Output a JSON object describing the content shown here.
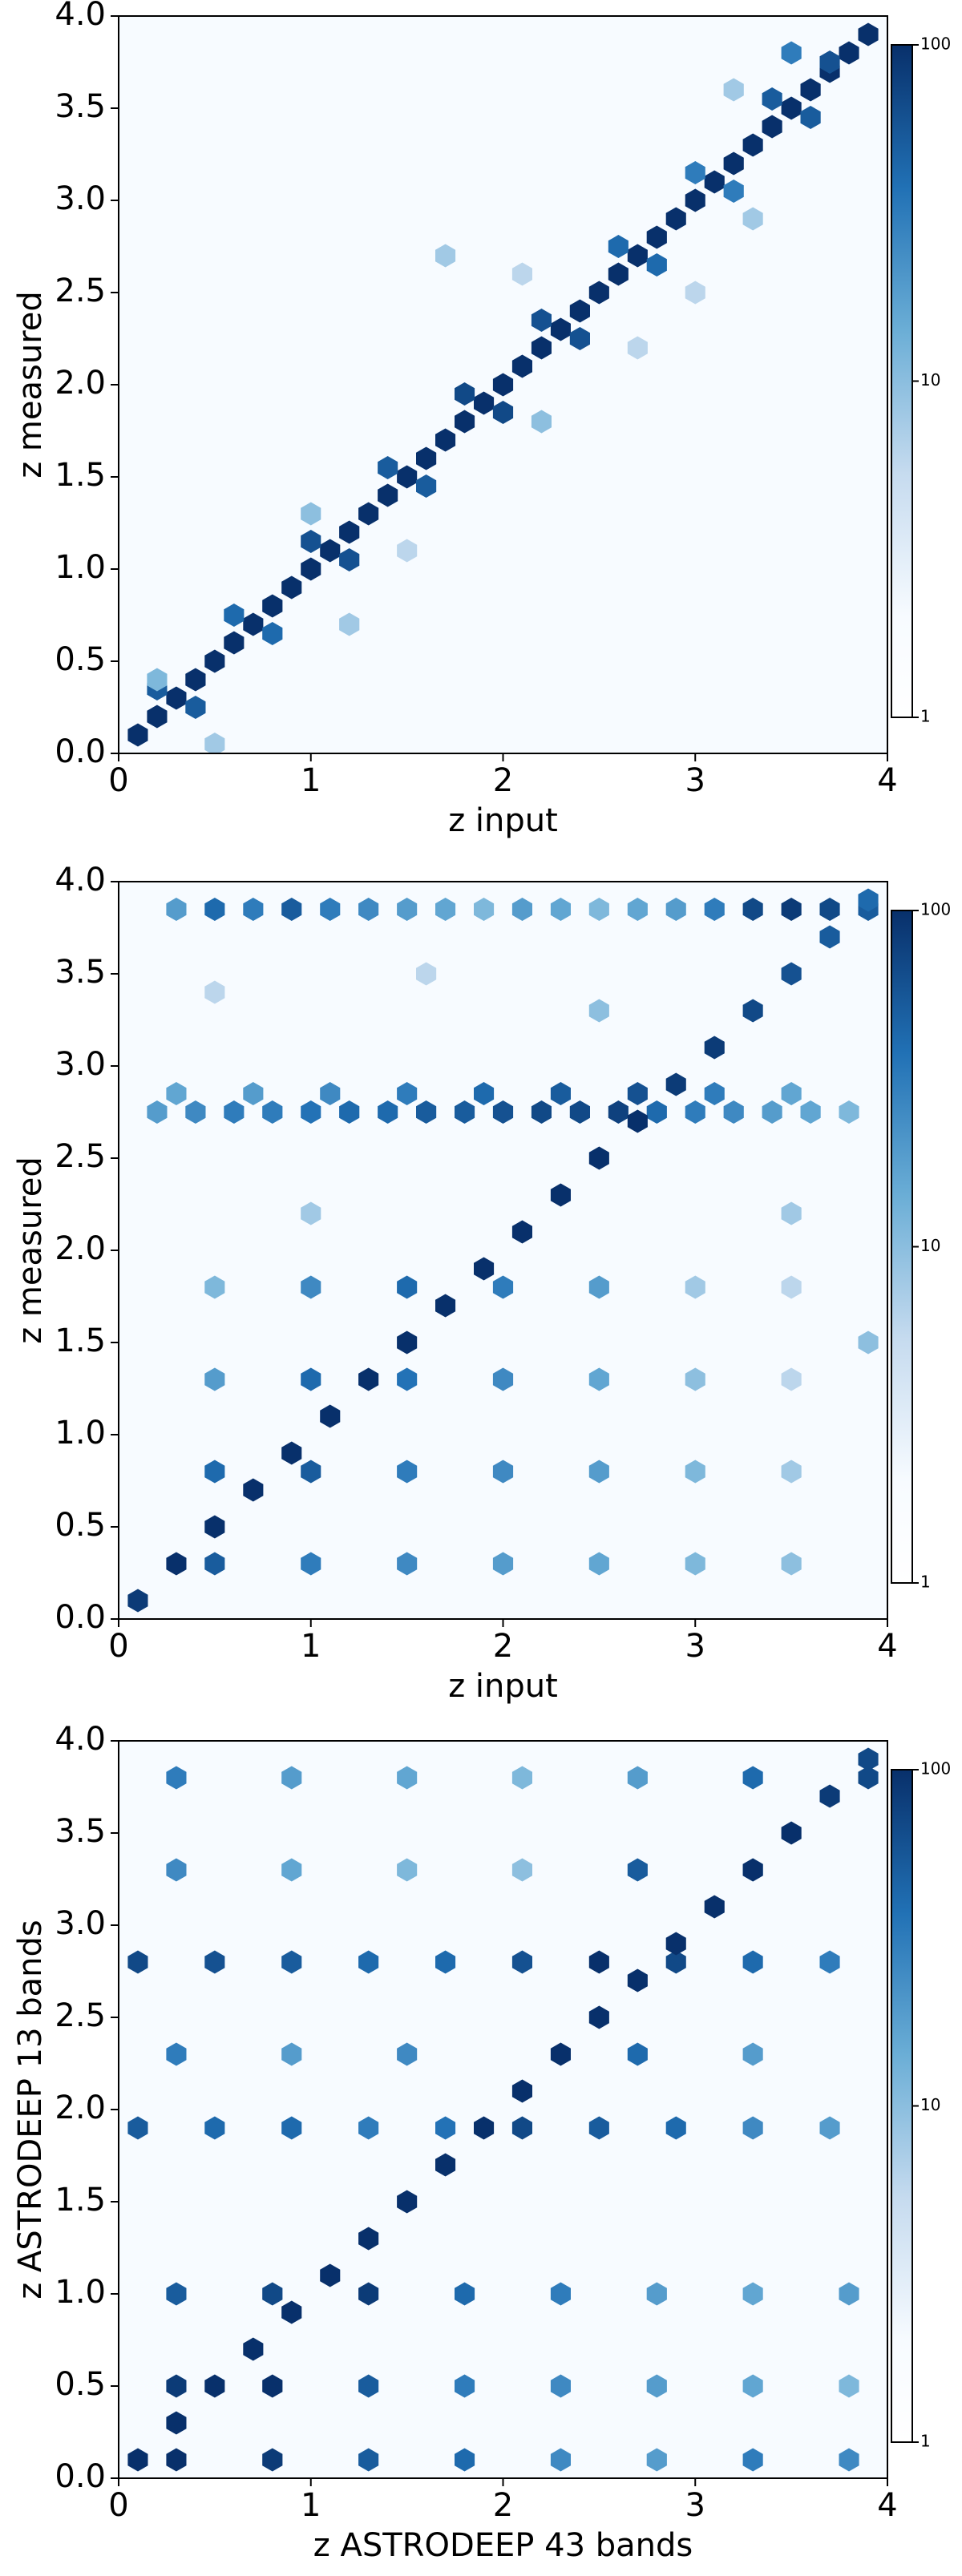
{
  "chart_data": [
    {
      "type": "hexbin",
      "xlabel": "z input",
      "ylabel": "z measured",
      "xlim": [
        0,
        4
      ],
      "ylim": [
        0,
        4
      ],
      "xticks": [
        0,
        1,
        2,
        3,
        4
      ],
      "yticks": [
        {
          "value": 0,
          "label": "0.0"
        },
        {
          "value": 0.5,
          "label": "0.5"
        },
        {
          "value": 1,
          "label": "1.0"
        },
        {
          "value": 1.5,
          "label": "1.5"
        },
        {
          "value": 2,
          "label": "2.0"
        },
        {
          "value": 2.5,
          "label": "2.5"
        },
        {
          "value": 3,
          "label": "3.0"
        },
        {
          "value": 3.5,
          "label": "3.5"
        },
        {
          "value": 4,
          "label": "4.0"
        }
      ],
      "colorbar": {
        "lim": [
          1,
          100
        ],
        "ticks": [
          1,
          10,
          100
        ],
        "log": true
      },
      "colors": [
        "#f7fbff",
        "#c6dbef",
        "#6baed6",
        "#2171b5",
        "#08306b"
      ],
      "x": [
        0.1,
        0.2,
        0.3,
        0.4,
        0.5,
        0.6,
        0.7,
        0.8,
        0.9,
        1.0,
        1.1,
        1.2,
        1.3,
        1.4,
        1.5,
        1.6,
        1.7,
        1.8,
        1.9,
        2.0,
        2.1,
        2.2,
        2.3,
        2.4,
        2.5,
        2.6,
        2.7,
        2.8,
        2.9,
        3.0,
        3.1,
        3.2,
        3.3,
        3.4,
        3.5,
        3.6,
        3.7,
        3.8,
        3.9,
        0.2,
        0.6,
        1.0,
        1.4,
        1.8,
        2.2,
        2.6,
        3.0,
        3.4,
        0.4,
        0.8,
        1.2,
        1.6,
        2.0,
        2.4,
        2.8,
        3.2,
        3.6,
        0.2,
        0.5,
        1.0,
        1.2,
        1.5,
        1.7,
        2.1,
        2.2,
        2.7,
        3.0,
        3.2,
        3.5,
        3.7,
        3.3
      ],
      "y": [
        0.1,
        0.2,
        0.3,
        0.4,
        0.5,
        0.6,
        0.7,
        0.8,
        0.9,
        1.0,
        1.1,
        1.2,
        1.3,
        1.4,
        1.5,
        1.6,
        1.7,
        1.8,
        1.9,
        2.0,
        2.1,
        2.2,
        2.3,
        2.4,
        2.5,
        2.6,
        2.7,
        2.8,
        2.9,
        3.0,
        3.1,
        3.2,
        3.3,
        3.4,
        3.5,
        3.6,
        3.7,
        3.8,
        3.9,
        0.35,
        0.75,
        1.15,
        1.55,
        1.95,
        2.35,
        2.75,
        3.15,
        3.55,
        0.25,
        0.65,
        1.05,
        1.45,
        1.85,
        2.25,
        2.65,
        3.05,
        3.45,
        0.4,
        0.05,
        1.3,
        0.7,
        1.1,
        2.7,
        2.6,
        1.8,
        2.2,
        2.5,
        3.6,
        3.8,
        3.75,
        2.9
      ],
      "counts": [
        100,
        100,
        100,
        100,
        100,
        100,
        100,
        100,
        100,
        100,
        100,
        100,
        100,
        100,
        100,
        100,
        100,
        100,
        100,
        100,
        100,
        100,
        100,
        100,
        100,
        100,
        100,
        100,
        100,
        100,
        100,
        100,
        100,
        100,
        100,
        100,
        100,
        100,
        100,
        40,
        30,
        50,
        40,
        60,
        50,
        30,
        20,
        40,
        40,
        30,
        50,
        40,
        60,
        50,
        30,
        20,
        40,
        5,
        3,
        4,
        3,
        2,
        3,
        2,
        4,
        2,
        2,
        3,
        20,
        50,
        3
      ]
    },
    {
      "type": "hexbin",
      "xlabel": "z input",
      "ylabel": "z measured",
      "xlim": [
        0,
        4
      ],
      "ylim": [
        0,
        4
      ],
      "xticks": [
        0,
        1,
        2,
        3,
        4
      ],
      "yticks": [
        {
          "value": 0,
          "label": "0.0"
        },
        {
          "value": 0.5,
          "label": "0.5"
        },
        {
          "value": 1,
          "label": "1.0"
        },
        {
          "value": 1.5,
          "label": "1.5"
        },
        {
          "value": 2,
          "label": "2.0"
        },
        {
          "value": 2.5,
          "label": "2.5"
        },
        {
          "value": 3,
          "label": "3.0"
        },
        {
          "value": 3.5,
          "label": "3.5"
        },
        {
          "value": 4,
          "label": "4.0"
        }
      ],
      "colorbar": {
        "lim": [
          1,
          100
        ],
        "ticks": [
          1,
          10,
          100
        ],
        "log": true
      },
      "colors": [
        "#f7fbff",
        "#c6dbef",
        "#6baed6",
        "#2171b5",
        "#08306b"
      ],
      "x": [
        0.5,
        1.0,
        1.5,
        2.0,
        2.5,
        3.0,
        3.5,
        0.5,
        1.0,
        1.5,
        2.0,
        2.5,
        3.0,
        3.5,
        0.5,
        1.0,
        1.5,
        2.0,
        2.5,
        3.0,
        3.5,
        0.5,
        1.0,
        1.5,
        2.0,
        2.5,
        3.0,
        3.5,
        1.0,
        2.5,
        3.5,
        3.9,
        0.5,
        1.6,
        0.2,
        0.4,
        0.6,
        0.8,
        1.0,
        1.2,
        1.4,
        1.6,
        1.8,
        2.0,
        2.2,
        2.4,
        2.6,
        2.8,
        3.0,
        3.2,
        3.4,
        3.6,
        3.8,
        0.3,
        0.7,
        1.1,
        1.5,
        1.9,
        2.3,
        2.7,
        3.1,
        3.5,
        0.3,
        0.5,
        0.7,
        0.9,
        1.1,
        1.3,
        1.5,
        1.7,
        1.9,
        2.1,
        2.3,
        2.5,
        2.7,
        2.9,
        3.1,
        3.3,
        3.5,
        3.7,
        3.9,
        0.1,
        0.3,
        0.5,
        0.7,
        0.9,
        1.1,
        1.3,
        1.5,
        1.7,
        1.9,
        2.1,
        2.3,
        2.5,
        2.7,
        2.9,
        3.1,
        3.3,
        3.5,
        3.7,
        3.9
      ],
      "y": [
        0.3,
        0.3,
        0.3,
        0.3,
        0.3,
        0.3,
        0.3,
        0.8,
        0.8,
        0.8,
        0.8,
        0.8,
        0.8,
        0.8,
        1.3,
        1.3,
        1.3,
        1.3,
        1.3,
        1.3,
        1.3,
        1.8,
        1.8,
        1.8,
        1.8,
        1.8,
        1.8,
        1.8,
        2.2,
        3.3,
        2.2,
        1.5,
        3.4,
        3.5,
        2.75,
        2.75,
        2.75,
        2.75,
        2.75,
        2.75,
        2.75,
        2.75,
        2.75,
        2.75,
        2.75,
        2.75,
        2.75,
        2.75,
        2.75,
        2.75,
        2.75,
        2.75,
        2.75,
        2.85,
        2.85,
        2.85,
        2.85,
        2.85,
        2.85,
        2.85,
        2.85,
        2.85,
        3.85,
        3.85,
        3.85,
        3.85,
        3.85,
        3.85,
        3.85,
        3.85,
        3.85,
        3.85,
        3.85,
        3.85,
        3.85,
        3.85,
        3.85,
        3.85,
        3.85,
        3.85,
        3.85,
        0.1,
        0.3,
        0.5,
        0.7,
        0.9,
        1.1,
        1.3,
        1.5,
        1.7,
        1.9,
        2.1,
        2.3,
        2.5,
        2.7,
        2.9,
        3.1,
        3.3,
        3.5,
        3.7,
        3.9
      ],
      "counts": [
        40,
        20,
        15,
        10,
        8,
        5,
        4,
        30,
        40,
        20,
        15,
        10,
        5,
        3,
        10,
        30,
        25,
        15,
        8,
        4,
        2,
        5,
        15,
        30,
        20,
        10,
        3,
        2,
        3,
        4,
        3,
        4,
        2,
        2,
        10,
        15,
        20,
        20,
        25,
        30,
        30,
        40,
        40,
        50,
        60,
        60,
        70,
        30,
        20,
        15,
        10,
        8,
        5,
        8,
        10,
        15,
        20,
        30,
        40,
        50,
        20,
        8,
        10,
        30,
        20,
        40,
        20,
        15,
        10,
        8,
        5,
        10,
        8,
        5,
        8,
        10,
        20,
        60,
        80,
        60,
        40,
        80,
        100,
        100,
        100,
        100,
        100,
        100,
        100,
        100,
        100,
        100,
        100,
        100,
        100,
        80,
        80,
        60,
        50,
        40,
        30
      ]
    },
    {
      "type": "hexbin",
      "xlabel": "z ASTRODEEP 43 bands",
      "ylabel": "z ASTRODEEP 13 bands",
      "xlim": [
        0,
        4
      ],
      "ylim": [
        0,
        4
      ],
      "xticks": [
        0,
        1,
        2,
        3,
        4
      ],
      "yticks": [
        {
          "value": 0,
          "label": "0.0"
        },
        {
          "value": 0.5,
          "label": "0.5"
        },
        {
          "value": 1,
          "label": "1.0"
        },
        {
          "value": 1.5,
          "label": "1.5"
        },
        {
          "value": 2,
          "label": "2.0"
        },
        {
          "value": 2.5,
          "label": "2.5"
        },
        {
          "value": 3,
          "label": "3.0"
        },
        {
          "value": 3.5,
          "label": "3.5"
        },
        {
          "value": 4,
          "label": "4.0"
        }
      ],
      "colorbar": {
        "lim": [
          1,
          100
        ],
        "ticks": [
          1,
          10,
          100
        ],
        "log": true
      },
      "colors": [
        "#f7fbff",
        "#c6dbef",
        "#6baed6",
        "#2171b5",
        "#08306b"
      ],
      "x": [
        0.3,
        0.8,
        1.3,
        1.8,
        2.3,
        2.8,
        3.3,
        3.8,
        0.3,
        0.8,
        1.3,
        1.8,
        2.3,
        2.8,
        3.3,
        3.8,
        0.3,
        0.8,
        1.3,
        1.8,
        2.3,
        2.8,
        3.3,
        3.8,
        0.3,
        0.9,
        1.5,
        2.1,
        2.7,
        3.3,
        3.9,
        0.3,
        0.9,
        1.5,
        2.1,
        2.7,
        3.3,
        0.3,
        0.9,
        1.5,
        2.7,
        3.3,
        0.1,
        0.5,
        0.9,
        1.3,
        1.7,
        2.1,
        2.5,
        2.9,
        3.3,
        3.7,
        0.1,
        0.5,
        0.9,
        1.3,
        1.7,
        2.1,
        2.5,
        2.9,
        3.3,
        3.7,
        0.1,
        0.3,
        0.5,
        0.7,
        0.9,
        1.1,
        1.3,
        1.5,
        1.7,
        1.9,
        2.1,
        2.3,
        2.5,
        2.7,
        2.9,
        3.1,
        3.3,
        3.5,
        3.7,
        3.9
      ],
      "y": [
        0.1,
        0.1,
        0.1,
        0.1,
        0.1,
        0.1,
        0.1,
        0.1,
        0.5,
        0.5,
        0.5,
        0.5,
        0.5,
        0.5,
        0.5,
        0.5,
        1.0,
        1.0,
        1.0,
        1.0,
        1.0,
        1.0,
        1.0,
        1.0,
        3.8,
        3.8,
        3.8,
        3.8,
        3.8,
        3.8,
        3.8,
        3.3,
        3.3,
        3.3,
        3.3,
        3.3,
        3.3,
        2.3,
        2.3,
        2.3,
        2.3,
        2.3,
        2.8,
        2.8,
        2.8,
        2.8,
        2.8,
        2.8,
        2.8,
        2.8,
        2.8,
        2.8,
        1.9,
        1.9,
        1.9,
        1.9,
        1.9,
        1.9,
        1.9,
        1.9,
        1.9,
        1.9,
        0.1,
        0.3,
        0.5,
        0.7,
        0.9,
        1.1,
        1.3,
        1.5,
        1.7,
        1.9,
        2.1,
        2.3,
        2.5,
        2.7,
        2.9,
        3.1,
        3.3,
        3.5,
        3.7,
        3.9
      ],
      "counts": [
        100,
        80,
        40,
        30,
        15,
        10,
        20,
        15,
        80,
        100,
        40,
        20,
        15,
        10,
        8,
        5,
        40,
        60,
        80,
        30,
        20,
        10,
        8,
        10,
        20,
        10,
        8,
        5,
        10,
        30,
        60,
        15,
        8,
        5,
        4,
        40,
        20,
        20,
        10,
        15,
        30,
        10,
        60,
        50,
        40,
        30,
        30,
        50,
        100,
        60,
        30,
        20,
        40,
        30,
        30,
        20,
        25,
        60,
        40,
        30,
        15,
        10,
        100,
        100,
        100,
        100,
        100,
        100,
        100,
        100,
        100,
        100,
        100,
        100,
        100,
        100,
        100,
        100,
        100,
        100,
        80,
        60
      ]
    }
  ]
}
